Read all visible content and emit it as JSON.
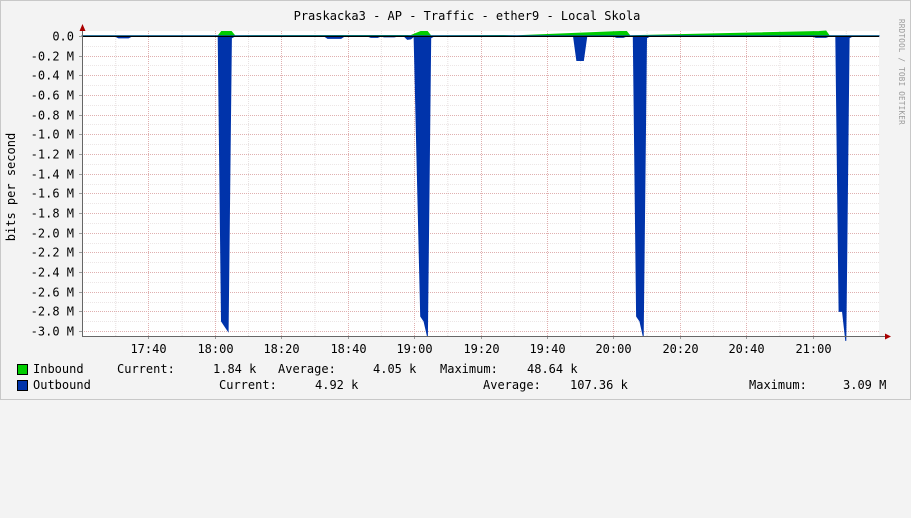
{
  "chart_data": {
    "type": "area",
    "title": "Praskacka3 - AP - Traffic - ether9 - Local Skola",
    "ylabel": "bits per second",
    "side_label": "RRDTOOL / TOBI OETIKER",
    "ylim": [
      -3.05,
      0.05
    ],
    "y_ticks": [
      0,
      -0.2,
      -0.4,
      -0.6,
      -0.8,
      -1.0,
      -1.2,
      -1.4,
      -1.6,
      -1.8,
      -2.0,
      -2.2,
      -2.4,
      -2.6,
      -2.8,
      -3.0
    ],
    "y_tick_labels": [
      "0.0",
      "-0.2 M",
      "-0.4 M",
      "-0.6 M",
      "-0.8 M",
      "-1.0 M",
      "-1.2 M",
      "-1.4 M",
      "-1.6 M",
      "-1.8 M",
      "-2.0 M",
      "-2.2 M",
      "-2.4 M",
      "-2.6 M",
      "-2.8 M",
      "-3.0 M"
    ],
    "xlim": [
      "17:20",
      "21:20"
    ],
    "x_ticks": [
      "17:40",
      "18:00",
      "18:20",
      "18:40",
      "19:00",
      "19:20",
      "19:40",
      "20:00",
      "20:20",
      "20:40",
      "21:00"
    ],
    "grid": true,
    "legend_placement": "bottom",
    "series": [
      {
        "name": "Inbound",
        "color": "#00cc00",
        "direction": "positive",
        "points": [
          [
            "17:20",
            0.002
          ],
          [
            "18:01",
            0.002
          ],
          [
            "18:02",
            0.045
          ],
          [
            "18:05",
            0.045
          ],
          [
            "18:06",
            0.002
          ],
          [
            "18:58",
            0.004
          ],
          [
            "18:59",
            0.003
          ],
          [
            "19:02",
            0.045
          ],
          [
            "19:04",
            0.045
          ],
          [
            "19:05",
            0.002
          ],
          [
            "19:27",
            0.004
          ],
          [
            "19:31",
            0.002
          ],
          [
            "20:02",
            0.045
          ],
          [
            "20:04",
            0.045
          ],
          [
            "20:05",
            0.002
          ],
          [
            "21:02",
            0.045
          ],
          [
            "21:04",
            0.05
          ],
          [
            "21:05",
            0.002
          ],
          [
            "21:20",
            0.002
          ]
        ]
      },
      {
        "name": "Outbound",
        "color": "#0033aa",
        "direction": "negative",
        "points": [
          [
            "17:20",
            -0.003
          ],
          [
            "17:30",
            -0.003
          ],
          [
            "17:31",
            -0.02
          ],
          [
            "17:34",
            -0.02
          ],
          [
            "17:35",
            -0.003
          ],
          [
            "18:01",
            -0.003
          ],
          [
            "18:02",
            -2.9
          ],
          [
            "18:03",
            -2.95
          ],
          [
            "18:04",
            -3.0
          ],
          [
            "18:05",
            -0.02
          ],
          [
            "18:06",
            -0.003
          ],
          [
            "18:33",
            -0.003
          ],
          [
            "18:34",
            -0.025
          ],
          [
            "18:38",
            -0.025
          ],
          [
            "18:39",
            -0.003
          ],
          [
            "18:46",
            -0.003
          ],
          [
            "18:47",
            -0.015
          ],
          [
            "18:49",
            -0.015
          ],
          [
            "18:50",
            -0.003
          ],
          [
            "18:51",
            -0.01
          ],
          [
            "18:54",
            -0.01
          ],
          [
            "18:55",
            -0.003
          ],
          [
            "18:57",
            -0.003
          ],
          [
            "18:58",
            -0.035
          ],
          [
            "18:59",
            -0.03
          ],
          [
            "19:00",
            -0.003
          ],
          [
            "19:02",
            -2.85
          ],
          [
            "19:03",
            -2.9
          ],
          [
            "19:04",
            -3.05
          ],
          [
            "19:05",
            -0.02
          ],
          [
            "19:06",
            -0.003
          ],
          [
            "19:48",
            -0.003
          ],
          [
            "19:49",
            -0.25
          ],
          [
            "19:51",
            -0.25
          ],
          [
            "19:52",
            -0.003
          ],
          [
            "20:00",
            -0.003
          ],
          [
            "20:01",
            -0.015
          ],
          [
            "20:03",
            -0.015
          ],
          [
            "20:04",
            -0.003
          ],
          [
            "20:06",
            -0.003
          ],
          [
            "20:07",
            -2.85
          ],
          [
            "20:08",
            -2.9
          ],
          [
            "20:09",
            -3.05
          ],
          [
            "20:10",
            -0.02
          ],
          [
            "20:11",
            -0.003
          ],
          [
            "21:00",
            -0.003
          ],
          [
            "21:01",
            -0.015
          ],
          [
            "21:04",
            -0.015
          ],
          [
            "21:05",
            -0.003
          ],
          [
            "21:07",
            -0.003
          ],
          [
            "21:08",
            -2.8
          ],
          [
            "21:09",
            -2.8
          ],
          [
            "21:10",
            -3.1
          ],
          [
            "21:11",
            -0.02
          ],
          [
            "21:12",
            -0.003
          ],
          [
            "21:20",
            -0.003
          ]
        ]
      }
    ]
  },
  "legend": {
    "inbound": {
      "name": "Inbound",
      "current_label": "Current:",
      "current": "1.84 k",
      "average_label": "Average:",
      "average": "4.05 k",
      "maximum_label": "Maximum:",
      "maximum": "48.64 k"
    },
    "outbound": {
      "name": "Outbound",
      "current_label": "Current:",
      "current": "4.92 k",
      "average_label": "Average:",
      "average": "107.36 k",
      "maximum_label": "Maximum:",
      "maximum": "3.09 M"
    }
  }
}
